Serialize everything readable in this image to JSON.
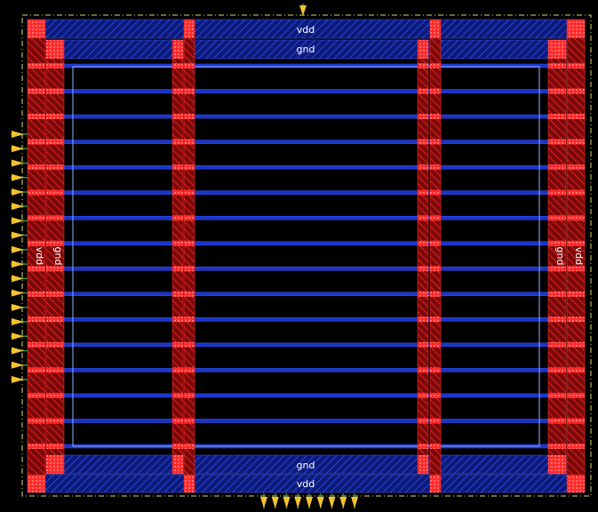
{
  "labels": {
    "top_vdd": "vdd",
    "top_gnd": "gnd",
    "bottom_gnd": "gnd",
    "bottom_vdd": "vdd",
    "left_vdd": "vdd",
    "left_gnd": "gnd",
    "right_gnd": "gnd",
    "right_vdd": "vdd"
  },
  "colors": {
    "background": "#000000",
    "metal_horizontal": "#1a33c8",
    "metal_vertical": "#e01515",
    "via": "#ff2a2a",
    "core_outline": "#7fa8ff",
    "boundary": "#d8d860",
    "pin": "#f2c232"
  },
  "pins": {
    "top_count": 1,
    "left_count": 18,
    "bottom_count": 9
  },
  "grid": {
    "stripe_count": 16,
    "vertical_strap_count": 2
  }
}
